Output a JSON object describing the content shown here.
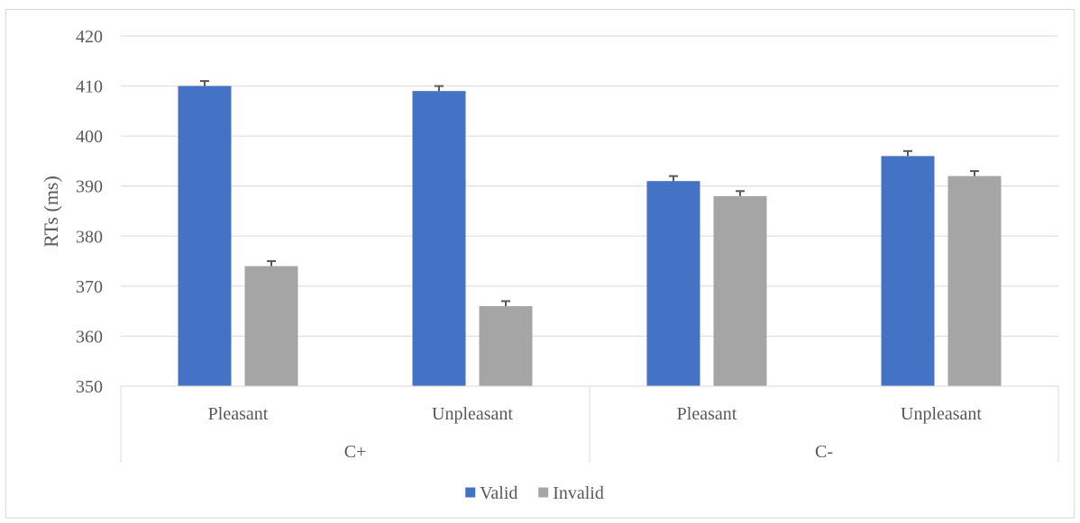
{
  "chart_data": {
    "type": "bar",
    "ylabel": "RTs (ms)",
    "xlabel": "",
    "ylim": [
      350,
      420
    ],
    "yticks": [
      350,
      360,
      370,
      380,
      390,
      400,
      410,
      420
    ],
    "groups": [
      {
        "label": "C+",
        "categories": [
          "Pleasant",
          "Unpleasant"
        ]
      },
      {
        "label": "C-",
        "categories": [
          "Pleasant",
          "Unpleasant"
        ]
      }
    ],
    "categories": [
      "Pleasant",
      "Unpleasant",
      "Pleasant",
      "Unpleasant"
    ],
    "series": [
      {
        "name": "Valid",
        "color": "#4472c4",
        "values": [
          410,
          409,
          391,
          396
        ],
        "errors": [
          1,
          1,
          1,
          1
        ]
      },
      {
        "name": "Invalid",
        "color": "#a5a5a5",
        "values": [
          374,
          366,
          388,
          392
        ],
        "errors": [
          1,
          1,
          1,
          1
        ]
      }
    ],
    "grid": true,
    "legend": "bottom"
  }
}
